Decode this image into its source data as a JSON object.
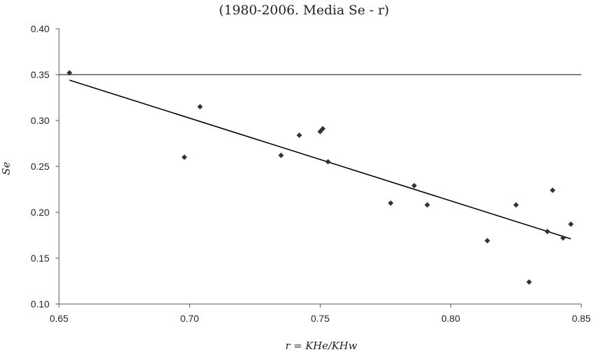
{
  "chart_data": {
    "type": "scatter",
    "title": "(1980-2006. Media Se - r)",
    "xlabel": "r = KHe/KHw",
    "ylabel": "Se",
    "xlim": [
      0.65,
      0.85
    ],
    "ylim": [
      0.1,
      0.4
    ],
    "x_ticks": [
      "0.65",
      "0.70",
      "0.75",
      "0.80",
      "0.85"
    ],
    "y_ticks": [
      "0.10",
      "0.15",
      "0.20",
      "0.25",
      "0.30",
      "0.35",
      "0.40"
    ],
    "grid": "horizontal line at 0.35 only",
    "marker": "diamond",
    "colors": {
      "points": "#333333",
      "axis": "#555555",
      "line": "#000000"
    },
    "points": [
      {
        "x": 0.654,
        "y": 0.352
      },
      {
        "x": 0.698,
        "y": 0.26
      },
      {
        "x": 0.704,
        "y": 0.315
      },
      {
        "x": 0.735,
        "y": 0.262
      },
      {
        "x": 0.742,
        "y": 0.284
      },
      {
        "x": 0.75,
        "y": 0.288
      },
      {
        "x": 0.751,
        "y": 0.291
      },
      {
        "x": 0.753,
        "y": 0.255
      },
      {
        "x": 0.777,
        "y": 0.21
      },
      {
        "x": 0.786,
        "y": 0.229
      },
      {
        "x": 0.791,
        "y": 0.208
      },
      {
        "x": 0.814,
        "y": 0.169
      },
      {
        "x": 0.825,
        "y": 0.208
      },
      {
        "x": 0.83,
        "y": 0.124
      },
      {
        "x": 0.837,
        "y": 0.179
      },
      {
        "x": 0.839,
        "y": 0.224
      },
      {
        "x": 0.843,
        "y": 0.172
      },
      {
        "x": 0.846,
        "y": 0.187
      }
    ],
    "trendline": {
      "x": [
        0.654,
        0.846
      ],
      "y": [
        0.344,
        0.171
      ]
    }
  }
}
